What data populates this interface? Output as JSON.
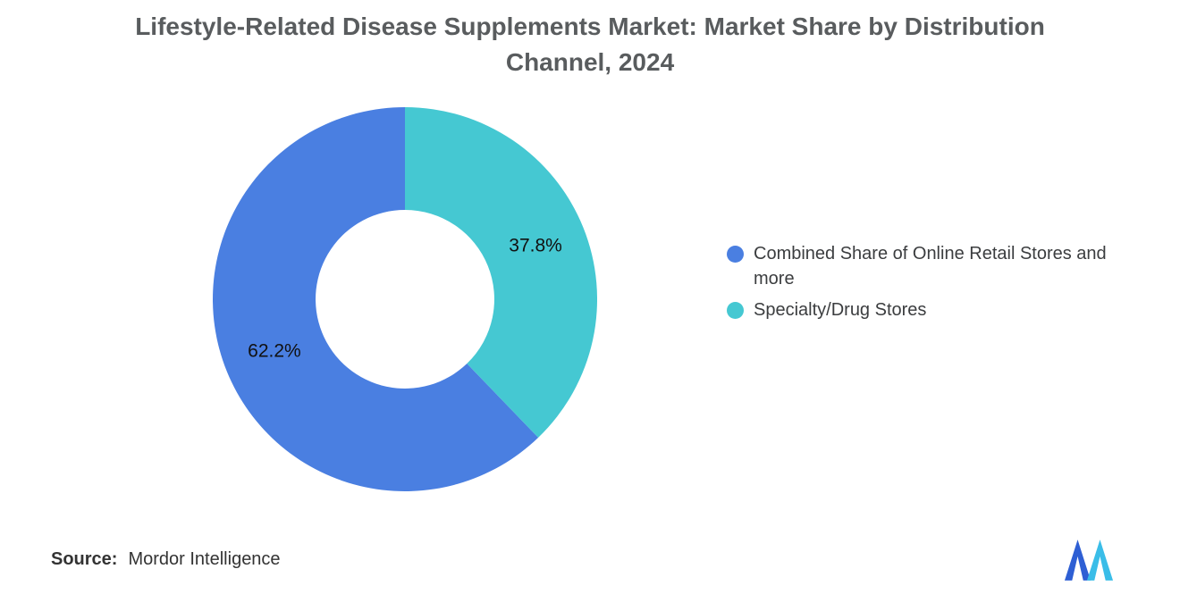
{
  "title": {
    "line1": "Lifestyle-Related Disease Supplements Market: Market Share by Distribution",
    "line2": "Channel, 2024"
  },
  "chart_data": {
    "type": "pie",
    "subtype": "donut",
    "title": "Lifestyle-Related Disease Supplements Market: Market Share by Distribution Channel, 2024",
    "unit": "%",
    "slices": [
      {
        "label": "Combined Share of Online Retail Stores and more",
        "value": 62.2,
        "data_label": "62.2%",
        "color": "#4A7FE1"
      },
      {
        "label": "Specialty/Drug Stores",
        "value": 37.8,
        "data_label": "37.8%",
        "color": "#45C8D2"
      }
    ],
    "layout": {
      "legend_position": "right",
      "start_angle": "top",
      "first_slice_direction": "counterclockwise",
      "inner_radius_ratio": 0.465,
      "data_label_color": "#111111",
      "grid": false
    }
  },
  "source": {
    "label": "Source:",
    "text": "Mordor Intelligence"
  },
  "logo": {
    "name": "Mordor Intelligence",
    "colors": {
      "left": "#2E5FD4",
      "right": "#3ABDE8"
    }
  }
}
